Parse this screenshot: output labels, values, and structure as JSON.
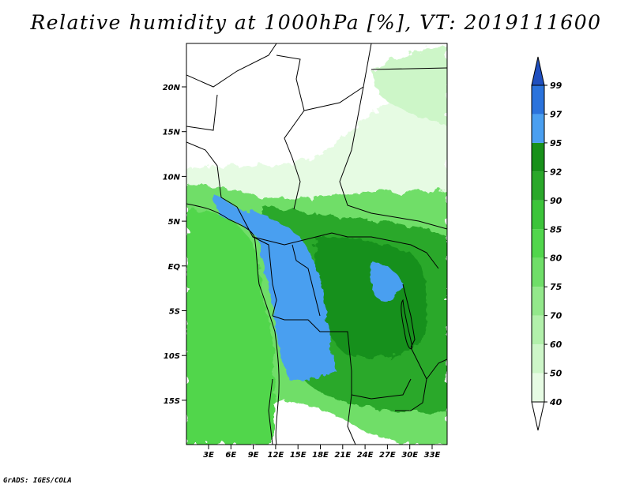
{
  "title": "Relative humidity at 1000hPa [%], VT: 2019111600",
  "credit": "GrADS: IGES/COLA",
  "map": {
    "lat_ticks": [
      "20N",
      "15N",
      "10N",
      "5N",
      "EQ",
      "5S",
      "10S",
      "15S"
    ],
    "lon_ticks": [
      "3E",
      "6E",
      "9E",
      "12E",
      "15E",
      "18E",
      "21E",
      "24E",
      "27E",
      "30E",
      "33E"
    ]
  },
  "colorbar": {
    "levels": [
      "40",
      "50",
      "60",
      "70",
      "75",
      "80",
      "85",
      "90",
      "92",
      "95",
      "97",
      "99"
    ],
    "colors": [
      "#ffffff",
      "#e6fbe3",
      "#cdf6c8",
      "#b2f0ab",
      "#93e88b",
      "#6fde68",
      "#51d64c",
      "#3cc43a",
      "#2aa82a",
      "#18901a",
      "#4a9ff0",
      "#2b73dc",
      "#1f4fbf"
    ]
  }
}
